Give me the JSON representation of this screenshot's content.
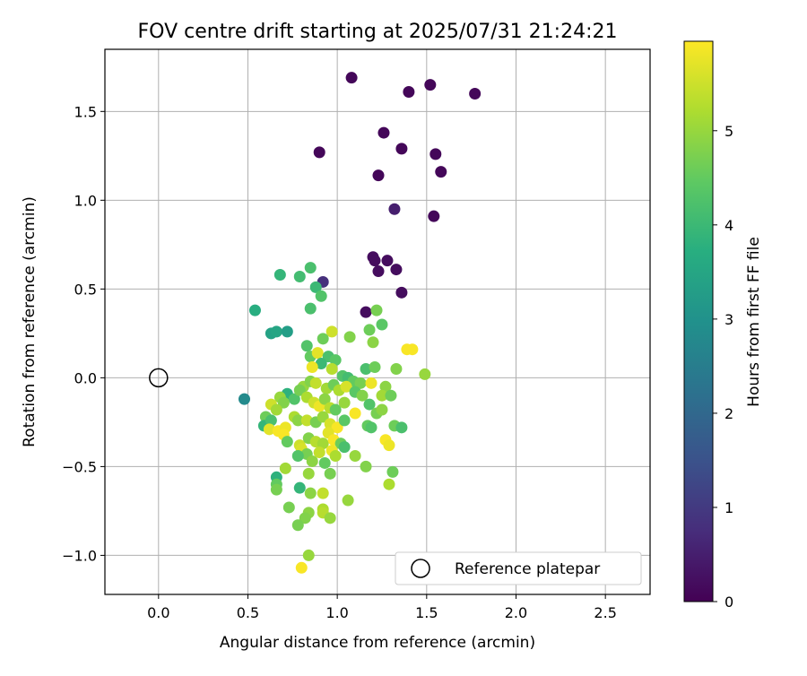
{
  "chart_data": {
    "type": "scatter",
    "title": "FOV centre drift starting at 2025/07/31 21:24:21",
    "xlabel": "Angular distance from reference (arcmin)",
    "ylabel": "Rotation from reference (arcmin)",
    "xlim": [
      -0.3,
      2.75
    ],
    "ylim": [
      -1.22,
      1.85
    ],
    "xticks": [
      0.0,
      0.5,
      1.0,
      1.5,
      2.0,
      2.5
    ],
    "yticks": [
      -1.0,
      -0.5,
      0.0,
      0.5,
      1.0,
      1.5
    ],
    "grid": true,
    "legend": {
      "location": "lower-right",
      "label": "Reference platepar"
    },
    "reference_point": {
      "x": 0.0,
      "y": 0.0
    },
    "colorbar": {
      "label": "Hours from first FF file",
      "range": [
        0,
        5.95
      ],
      "ticks": [
        0,
        1,
        2,
        3,
        4,
        5
      ],
      "colormap": "viridis"
    },
    "points": [
      {
        "x": 1.08,
        "y": 1.69,
        "h": 0.1
      },
      {
        "x": 1.52,
        "y": 1.65,
        "h": 0.1
      },
      {
        "x": 1.77,
        "y": 1.6,
        "h": 0.1
      },
      {
        "x": 1.4,
        "y": 1.61,
        "h": 0.1
      },
      {
        "x": 1.26,
        "y": 1.38,
        "h": 0.1
      },
      {
        "x": 1.36,
        "y": 1.29,
        "h": 0.1
      },
      {
        "x": 1.55,
        "y": 1.26,
        "h": 0.1
      },
      {
        "x": 0.9,
        "y": 1.27,
        "h": 0.1
      },
      {
        "x": 1.58,
        "y": 1.16,
        "h": 0.1
      },
      {
        "x": 1.23,
        "y": 1.14,
        "h": 0.1
      },
      {
        "x": 1.32,
        "y": 0.95,
        "h": 0.5
      },
      {
        "x": 1.54,
        "y": 0.91,
        "h": 0.1
      },
      {
        "x": 1.2,
        "y": 0.68,
        "h": 0.2
      },
      {
        "x": 1.21,
        "y": 0.66,
        "h": 0.2
      },
      {
        "x": 1.28,
        "y": 0.66,
        "h": 0.2
      },
      {
        "x": 1.33,
        "y": 0.61,
        "h": 0.2
      },
      {
        "x": 1.23,
        "y": 0.6,
        "h": 0.2
      },
      {
        "x": 1.36,
        "y": 0.48,
        "h": 0.2
      },
      {
        "x": 1.16,
        "y": 0.37,
        "h": 0.2
      },
      {
        "x": 0.92,
        "y": 0.54,
        "h": 0.8
      },
      {
        "x": 0.48,
        "y": -0.12,
        "h": 2.8
      },
      {
        "x": 0.68,
        "y": 0.58,
        "h": 3.9
      },
      {
        "x": 0.79,
        "y": 0.57,
        "h": 4.1
      },
      {
        "x": 0.85,
        "y": 0.62,
        "h": 4.2
      },
      {
        "x": 0.88,
        "y": 0.51,
        "h": 4.0
      },
      {
        "x": 0.91,
        "y": 0.46,
        "h": 4.3
      },
      {
        "x": 0.85,
        "y": 0.39,
        "h": 4.2
      },
      {
        "x": 0.54,
        "y": 0.38,
        "h": 3.7
      },
      {
        "x": 0.63,
        "y": 0.25,
        "h": 3.4
      },
      {
        "x": 0.66,
        "y": 0.26,
        "h": 3.5
      },
      {
        "x": 0.72,
        "y": 0.26,
        "h": 3.3
      },
      {
        "x": 1.07,
        "y": 0.23,
        "h": 4.8
      },
      {
        "x": 0.97,
        "y": 0.26,
        "h": 5.5
      },
      {
        "x": 0.92,
        "y": 0.22,
        "h": 4.6
      },
      {
        "x": 1.22,
        "y": 0.38,
        "h": 4.7
      },
      {
        "x": 1.25,
        "y": 0.3,
        "h": 4.4
      },
      {
        "x": 1.18,
        "y": 0.27,
        "h": 4.6
      },
      {
        "x": 1.2,
        "y": 0.2,
        "h": 4.9
      },
      {
        "x": 1.39,
        "y": 0.16,
        "h": 5.9
      },
      {
        "x": 1.42,
        "y": 0.16,
        "h": 5.9
      },
      {
        "x": 0.83,
        "y": 0.18,
        "h": 4.3
      },
      {
        "x": 0.85,
        "y": 0.12,
        "h": 4.5
      },
      {
        "x": 0.89,
        "y": 0.14,
        "h": 5.7
      },
      {
        "x": 0.95,
        "y": 0.12,
        "h": 4.2
      },
      {
        "x": 0.99,
        "y": 0.1,
        "h": 4.4
      },
      {
        "x": 0.91,
        "y": 0.08,
        "h": 4.0
      },
      {
        "x": 0.86,
        "y": 0.06,
        "h": 5.8
      },
      {
        "x": 0.97,
        "y": 0.05,
        "h": 5.3
      },
      {
        "x": 1.16,
        "y": 0.05,
        "h": 4.2
      },
      {
        "x": 1.21,
        "y": 0.06,
        "h": 4.6
      },
      {
        "x": 1.33,
        "y": 0.05,
        "h": 4.8
      },
      {
        "x": 1.49,
        "y": 0.02,
        "h": 5.0
      },
      {
        "x": 1.03,
        "y": 0.01,
        "h": 4.3
      },
      {
        "x": 1.06,
        "y": 0.0,
        "h": 4.1
      },
      {
        "x": 1.09,
        "y": -0.02,
        "h": 4.5
      },
      {
        "x": 1.13,
        "y": -0.03,
        "h": 4.7
      },
      {
        "x": 1.19,
        "y": -0.03,
        "h": 5.8
      },
      {
        "x": 1.27,
        "y": -0.05,
        "h": 4.9
      },
      {
        "x": 0.81,
        "y": -0.05,
        "h": 5.0
      },
      {
        "x": 0.85,
        "y": -0.02,
        "h": 4.8
      },
      {
        "x": 0.88,
        "y": -0.03,
        "h": 5.4
      },
      {
        "x": 0.94,
        "y": -0.06,
        "h": 5.1
      },
      {
        "x": 0.98,
        "y": -0.04,
        "h": 4.6
      },
      {
        "x": 1.01,
        "y": -0.07,
        "h": 5.2
      },
      {
        "x": 1.05,
        "y": -0.05,
        "h": 5.6
      },
      {
        "x": 1.1,
        "y": -0.08,
        "h": 4.4
      },
      {
        "x": 1.14,
        "y": -0.1,
        "h": 4.8
      },
      {
        "x": 1.25,
        "y": -0.1,
        "h": 5.1
      },
      {
        "x": 1.3,
        "y": -0.1,
        "h": 4.6
      },
      {
        "x": 0.72,
        "y": -0.09,
        "h": 3.8
      },
      {
        "x": 0.76,
        "y": -0.12,
        "h": 4.3
      },
      {
        "x": 0.79,
        "y": -0.07,
        "h": 4.7
      },
      {
        "x": 0.83,
        "y": -0.11,
        "h": 5.2
      },
      {
        "x": 0.87,
        "y": -0.14,
        "h": 5.5
      },
      {
        "x": 0.9,
        "y": -0.16,
        "h": 5.8
      },
      {
        "x": 0.93,
        "y": -0.12,
        "h": 4.9
      },
      {
        "x": 0.96,
        "y": -0.17,
        "h": 5.3
      },
      {
        "x": 0.99,
        "y": -0.18,
        "h": 4.5
      },
      {
        "x": 1.04,
        "y": -0.14,
        "h": 5.0
      },
      {
        "x": 1.18,
        "y": -0.15,
        "h": 4.3
      },
      {
        "x": 1.22,
        "y": -0.2,
        "h": 4.7
      },
      {
        "x": 1.25,
        "y": -0.18,
        "h": 4.9
      },
      {
        "x": 1.1,
        "y": -0.2,
        "h": 5.9
      },
      {
        "x": 0.68,
        "y": -0.11,
        "h": 5.0
      },
      {
        "x": 0.7,
        "y": -0.14,
        "h": 4.8
      },
      {
        "x": 0.63,
        "y": -0.15,
        "h": 5.5
      },
      {
        "x": 0.66,
        "y": -0.18,
        "h": 5.1
      },
      {
        "x": 0.6,
        "y": -0.22,
        "h": 4.6
      },
      {
        "x": 0.59,
        "y": -0.27,
        "h": 3.9
      },
      {
        "x": 0.63,
        "y": -0.24,
        "h": 4.2
      },
      {
        "x": 0.62,
        "y": -0.29,
        "h": 5.7
      },
      {
        "x": 0.67,
        "y": -0.3,
        "h": 5.9
      },
      {
        "x": 0.71,
        "y": -0.28,
        "h": 5.8
      },
      {
        "x": 0.7,
        "y": -0.32,
        "h": 5.9
      },
      {
        "x": 0.72,
        "y": -0.36,
        "h": 4.5
      },
      {
        "x": 0.76,
        "y": -0.22,
        "h": 5.2
      },
      {
        "x": 0.78,
        "y": -0.24,
        "h": 4.9
      },
      {
        "x": 0.83,
        "y": -0.24,
        "h": 5.4
      },
      {
        "x": 0.88,
        "y": -0.25,
        "h": 4.7
      },
      {
        "x": 0.92,
        "y": -0.22,
        "h": 5.0
      },
      {
        "x": 0.96,
        "y": -0.26,
        "h": 5.6
      },
      {
        "x": 1.0,
        "y": -0.28,
        "h": 5.9
      },
      {
        "x": 1.04,
        "y": -0.24,
        "h": 4.4
      },
      {
        "x": 1.17,
        "y": -0.27,
        "h": 4.5
      },
      {
        "x": 1.19,
        "y": -0.28,
        "h": 4.3
      },
      {
        "x": 1.32,
        "y": -0.27,
        "h": 4.6
      },
      {
        "x": 1.36,
        "y": -0.28,
        "h": 4.2
      },
      {
        "x": 1.27,
        "y": -0.35,
        "h": 5.9
      },
      {
        "x": 1.29,
        "y": -0.38,
        "h": 5.8
      },
      {
        "x": 0.79,
        "y": -0.38,
        "h": 5.5
      },
      {
        "x": 0.84,
        "y": -0.34,
        "h": 4.8
      },
      {
        "x": 0.88,
        "y": -0.36,
        "h": 5.3
      },
      {
        "x": 0.92,
        "y": -0.37,
        "h": 5.1
      },
      {
        "x": 0.95,
        "y": -0.31,
        "h": 5.7
      },
      {
        "x": 0.98,
        "y": -0.35,
        "h": 5.9
      },
      {
        "x": 1.02,
        "y": -0.37,
        "h": 4.6
      },
      {
        "x": 1.04,
        "y": -0.39,
        "h": 4.2
      },
      {
        "x": 0.8,
        "y": -0.4,
        "h": 5.6
      },
      {
        "x": 0.83,
        "y": -0.43,
        "h": 4.7
      },
      {
        "x": 0.78,
        "y": -0.44,
        "h": 4.3
      },
      {
        "x": 0.86,
        "y": -0.47,
        "h": 4.9
      },
      {
        "x": 0.9,
        "y": -0.42,
        "h": 5.4
      },
      {
        "x": 0.93,
        "y": -0.48,
        "h": 4.5
      },
      {
        "x": 0.97,
        "y": -0.41,
        "h": 5.8
      },
      {
        "x": 0.99,
        "y": -0.44,
        "h": 5.2
      },
      {
        "x": 1.1,
        "y": -0.44,
        "h": 5.0
      },
      {
        "x": 1.16,
        "y": -0.5,
        "h": 4.8
      },
      {
        "x": 0.71,
        "y": -0.51,
        "h": 5.1
      },
      {
        "x": 0.84,
        "y": -0.54,
        "h": 5.0
      },
      {
        "x": 0.96,
        "y": -0.54,
        "h": 4.7
      },
      {
        "x": 1.31,
        "y": -0.53,
        "h": 4.6
      },
      {
        "x": 0.66,
        "y": -0.56,
        "h": 3.8
      },
      {
        "x": 0.66,
        "y": -0.6,
        "h": 4.5
      },
      {
        "x": 0.66,
        "y": -0.63,
        "h": 4.7
      },
      {
        "x": 0.79,
        "y": -0.62,
        "h": 3.9
      },
      {
        "x": 0.85,
        "y": -0.65,
        "h": 4.9
      },
      {
        "x": 0.92,
        "y": -0.65,
        "h": 5.4
      },
      {
        "x": 1.29,
        "y": -0.6,
        "h": 5.2
      },
      {
        "x": 1.06,
        "y": -0.69,
        "h": 5.0
      },
      {
        "x": 0.73,
        "y": -0.73,
        "h": 4.7
      },
      {
        "x": 0.92,
        "y": -0.74,
        "h": 5.2
      },
      {
        "x": 0.92,
        "y": -0.76,
        "h": 5.3
      },
      {
        "x": 0.84,
        "y": -0.76,
        "h": 4.9
      },
      {
        "x": 0.96,
        "y": -0.79,
        "h": 5.0
      },
      {
        "x": 0.82,
        "y": -0.79,
        "h": 4.8
      },
      {
        "x": 0.78,
        "y": -0.83,
        "h": 4.7
      },
      {
        "x": 0.84,
        "y": -1.0,
        "h": 5.0
      },
      {
        "x": 0.8,
        "y": -1.07,
        "h": 5.9
      }
    ]
  }
}
